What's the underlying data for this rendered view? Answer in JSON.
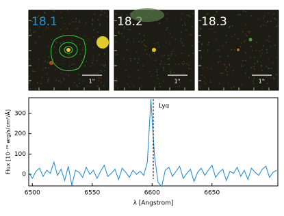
{
  "panels": [
    {
      "label": "18.1",
      "scale": "1\""
    },
    {
      "label": "18.2",
      "scale": "1\""
    },
    {
      "label": "18.3",
      "scale": "1\""
    }
  ],
  "chart_data": {
    "type": "line",
    "x_label": "λ [Angstrom]",
    "y_label": "Flux [10⁻²⁰ erg/s/cm²/Å]",
    "annotation": {
      "text": "Lyα",
      "x": 6601
    },
    "x": [
      6497,
      6500,
      6503,
      6506,
      6509,
      6512,
      6515,
      6518,
      6521,
      6524,
      6527,
      6530,
      6533,
      6536,
      6539,
      6542,
      6545,
      6548,
      6551,
      6554,
      6557,
      6560,
      6563,
      6566,
      6569,
      6572,
      6575,
      6578,
      6581,
      6584,
      6587,
      6590,
      6593,
      6596,
      6599,
      6602,
      6605,
      6608,
      6611,
      6614,
      6617,
      6620,
      6623,
      6626,
      6629,
      6632,
      6635,
      6638,
      6641,
      6644,
      6647,
      6650,
      6653,
      6656,
      6659,
      6662,
      6665,
      6668,
      6671,
      6674,
      6677,
      6680,
      6683,
      6686,
      6689,
      6692,
      6695,
      6698,
      6701,
      6704
    ],
    "series": [
      {
        "color": "#2b8fd0",
        "values": [
          10,
          -20,
          15,
          30,
          -10,
          20,
          5,
          60,
          -5,
          25,
          -30,
          40,
          -55,
          20,
          10,
          -15,
          35,
          0,
          20,
          -20,
          15,
          45,
          -10,
          5,
          25,
          -25,
          30,
          10,
          -15,
          20,
          0,
          15,
          -5,
          60,
          370,
          90,
          -40,
          -60,
          20,
          35,
          -10,
          15,
          40,
          -20,
          5,
          25,
          -35,
          10,
          30,
          -5,
          20,
          45,
          -15,
          10,
          25,
          -30,
          15,
          5,
          35,
          -10,
          20,
          -25,
          30,
          10,
          -5,
          25,
          40,
          -15,
          10,
          20
        ]
      }
    ],
    "xlim": [
      6497,
      6705
    ],
    "xticks": [
      6500,
      6550,
      6600,
      6650
    ],
    "ylim": [
      -57,
      377
    ],
    "yticks": [
      0,
      100,
      200,
      300
    ]
  }
}
